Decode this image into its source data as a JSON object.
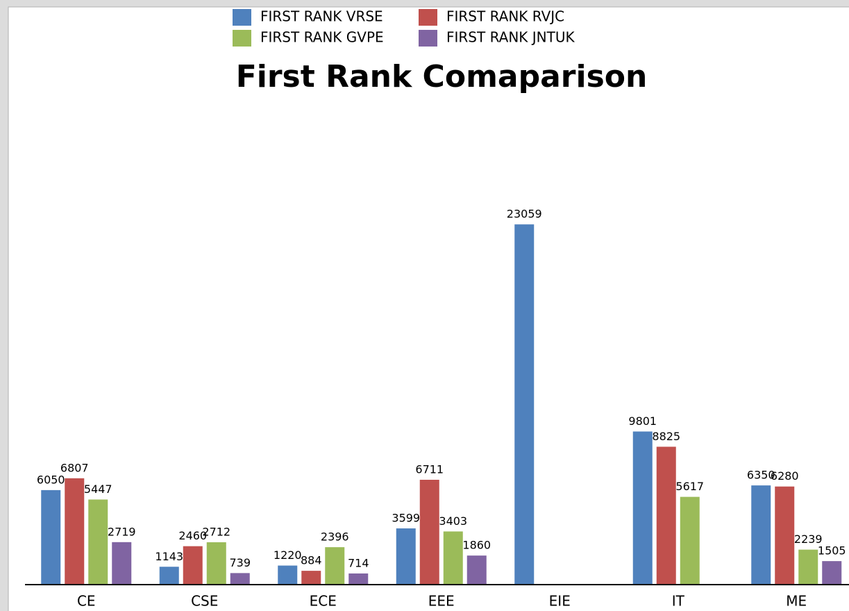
{
  "chart_data": {
    "type": "bar",
    "title": "First Rank Comaparison",
    "categories": [
      "CE",
      "CSE",
      "ECE",
      "EEE",
      "EIE",
      "IT",
      "ME"
    ],
    "series": [
      {
        "name": "FIRST RANK VRSE",
        "color": "#4f81bd",
        "values": [
          6050,
          1143,
          1220,
          3599,
          23059,
          9801,
          6350
        ]
      },
      {
        "name": "FIRST RANK RVJC",
        "color": "#c0504d",
        "values": [
          6807,
          2460,
          884,
          6711,
          null,
          8825,
          6280
        ]
      },
      {
        "name": "FIRST RANK GVPE",
        "color": "#9bbb59",
        "values": [
          5447,
          2712,
          2396,
          3403,
          null,
          5617,
          2239
        ]
      },
      {
        "name": "FIRST RANK JNTUK",
        "color": "#8064a2",
        "values": [
          2719,
          739,
          714,
          1860,
          null,
          null,
          1505
        ]
      }
    ],
    "ylim": [
      0,
      30000
    ],
    "legend": "top"
  }
}
